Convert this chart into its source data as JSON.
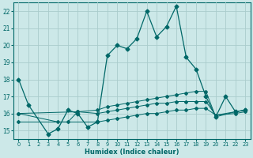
{
  "xlabel": "Humidex (Indice chaleur)",
  "background_color": "#cce8e8",
  "grid_color": "#aacccc",
  "line_color": "#006868",
  "xlim": [
    -0.5,
    23.5
  ],
  "ylim": [
    14.5,
    22.5
  ],
  "yticks": [
    15,
    16,
    17,
    18,
    19,
    20,
    21,
    22
  ],
  "xticks": [
    0,
    1,
    2,
    3,
    4,
    5,
    6,
    7,
    8,
    9,
    10,
    11,
    12,
    13,
    14,
    15,
    16,
    17,
    18,
    19,
    20,
    21,
    22,
    23
  ],
  "series": [
    [
      18.0,
      16.5,
      null,
      14.8,
      15.1,
      16.2,
      16.0,
      15.2,
      15.5,
      19.4,
      20.0,
      19.8,
      20.4,
      22.0,
      20.5,
      21.1,
      22.3,
      19.3,
      18.6,
      17.0,
      15.8,
      17.0,
      16.1,
      16.2
    ],
    [
      16.0,
      null,
      null,
      null,
      15.5,
      15.5,
      16.1,
      null,
      16.2,
      16.4,
      16.5,
      16.6,
      16.7,
      16.8,
      16.9,
      17.0,
      17.1,
      17.2,
      17.3,
      17.3,
      15.8,
      null,
      16.1,
      16.2
    ],
    [
      16.0,
      null,
      null,
      null,
      null,
      null,
      16.1,
      null,
      16.0,
      16.1,
      16.2,
      16.3,
      16.4,
      16.5,
      16.6,
      16.6,
      16.7,
      16.7,
      16.7,
      16.7,
      15.9,
      null,
      16.1,
      16.2
    ],
    [
      15.5,
      null,
      null,
      null,
      null,
      null,
      null,
      null,
      15.5,
      15.6,
      15.7,
      15.8,
      15.9,
      16.0,
      16.0,
      16.1,
      16.2,
      16.2,
      16.3,
      16.3,
      15.9,
      null,
      16.0,
      16.1
    ]
  ],
  "marker_size_main": 2.5,
  "marker_size_secondary": 2.0,
  "lw_main": 0.9,
  "lw_secondary": 0.7
}
